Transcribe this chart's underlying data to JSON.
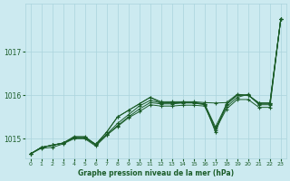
{
  "xlabel": "Graphe pression niveau de la mer (hPa)",
  "background_color": "#cceaf0",
  "grid_color": "#aad4dd",
  "line_color": "#1a5c28",
  "xlim": [
    -0.5,
    23.5
  ],
  "ylim": [
    1014.55,
    1018.1
  ],
  "yticks": [
    1015,
    1016,
    1017
  ],
  "xticks": [
    0,
    1,
    2,
    3,
    4,
    5,
    6,
    7,
    8,
    9,
    10,
    11,
    12,
    13,
    14,
    15,
    16,
    17,
    18,
    19,
    20,
    21,
    22,
    23
  ],
  "series": [
    [
      1014.65,
      1014.8,
      1014.85,
      1014.9,
      1015.05,
      1015.05,
      1014.87,
      1015.1,
      1015.35,
      1015.55,
      1015.75,
      1015.88,
      1015.82,
      1015.83,
      1015.83,
      1015.83,
      1015.8,
      1015.27,
      1015.78,
      1016.0,
      1016.0,
      1015.8,
      1015.8,
      1017.75
    ],
    [
      1014.65,
      1014.8,
      1014.85,
      1014.9,
      1015.03,
      1015.03,
      1014.85,
      1015.08,
      1015.3,
      1015.5,
      1015.68,
      1015.83,
      1015.8,
      1015.8,
      1015.82,
      1015.82,
      1015.78,
      1015.23,
      1015.73,
      1015.95,
      1016.02,
      1015.78,
      1015.78,
      1017.75
    ],
    [
      1014.65,
      1014.8,
      1014.85,
      1014.9,
      1015.02,
      1015.02,
      1014.87,
      1015.15,
      1015.5,
      1015.65,
      1015.8,
      1015.95,
      1015.82,
      1015.82,
      1015.83,
      1015.83,
      1015.8,
      1015.15,
      1015.8,
      1016.0,
      1016.0,
      1015.82,
      1015.82,
      1017.75
    ],
    [
      1014.65,
      1014.8,
      1014.85,
      1014.9,
      1015.02,
      1015.02,
      1014.87,
      1015.15,
      1015.5,
      1015.65,
      1015.8,
      1015.95,
      1015.85,
      1015.85,
      1015.85,
      1015.85,
      1015.83,
      1015.82,
      1015.83,
      1016.02,
      1016.0,
      1015.82,
      1015.82,
      1017.75
    ],
    [
      1014.65,
      1014.78,
      1014.8,
      1014.88,
      1015.0,
      1015.0,
      1014.83,
      1015.08,
      1015.28,
      1015.48,
      1015.62,
      1015.78,
      1015.75,
      1015.75,
      1015.77,
      1015.77,
      1015.75,
      1015.2,
      1015.68,
      1015.9,
      1015.9,
      1015.72,
      1015.72,
      1017.75
    ]
  ]
}
